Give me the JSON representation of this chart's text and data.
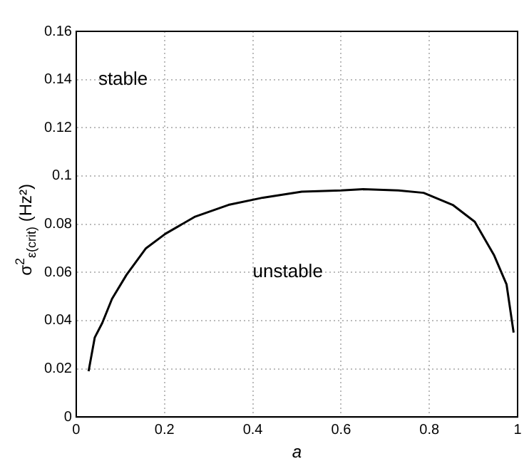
{
  "chart_data": {
    "type": "line",
    "xlabel": "a",
    "ylabel": "σ$^{2}$$_{ε(crit)}$ (Hz²)",
    "series": [
      {
        "color": "#000000",
        "x": [
          0.028,
          0.042,
          0.059,
          0.081,
          0.114,
          0.158,
          0.202,
          0.268,
          0.345,
          0.423,
          0.511,
          0.6,
          0.65,
          0.73,
          0.787,
          0.853,
          0.903,
          0.947,
          0.975,
          0.991
        ],
        "values": [
          0.019,
          0.033,
          0.039,
          0.049,
          0.059,
          0.07,
          0.076,
          0.083,
          0.088,
          0.091,
          0.0935,
          0.094,
          0.0945,
          0.094,
          0.093,
          0.088,
          0.081,
          0.067,
          0.055,
          0.035
        ]
      }
    ],
    "xlim": [
      0,
      1
    ],
    "xticks": [
      0,
      0.2,
      0.4,
      0.6,
      0.8,
      1
    ],
    "ylim": [
      0,
      0.16
    ],
    "yticks": [
      0,
      0.02,
      0.04,
      0.06,
      0.08,
      0.1,
      0.12,
      0.14,
      0.16
    ],
    "grid": true,
    "legend": false,
    "marker": "none",
    "line_style": "solid",
    "annotations": [
      "stable",
      "unstable"
    ]
  }
}
